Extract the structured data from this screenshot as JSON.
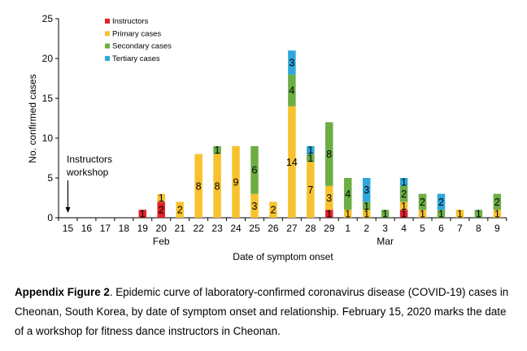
{
  "chart_data": {
    "type": "bar",
    "stacked": true,
    "categories": [
      "15",
      "16",
      "17",
      "18",
      "19",
      "20",
      "21",
      "22",
      "23",
      "24",
      "25",
      "26",
      "27",
      "28",
      "29",
      "1",
      "2",
      "3",
      "4",
      "5",
      "6",
      "7",
      "8",
      "9"
    ],
    "month_labels": [
      {
        "label": "Feb",
        "category": "20"
      },
      {
        "label": "Mar",
        "category": "3"
      }
    ],
    "series": [
      {
        "name": "Instructors",
        "color": "#e0222b",
        "values": [
          0,
          0,
          0,
          0,
          1,
          2,
          0,
          0,
          0,
          0,
          0,
          0,
          0,
          0,
          1,
          0,
          0,
          0,
          1,
          0,
          0,
          0,
          0,
          0
        ]
      },
      {
        "name": "Primary cases",
        "color": "#f7c22e",
        "values": [
          0,
          0,
          0,
          0,
          0,
          1,
          2,
          8,
          8,
          9,
          3,
          2,
          14,
          7,
          3,
          1,
          1,
          0,
          1,
          1,
          0,
          1,
          0,
          1
        ]
      },
      {
        "name": "Secondary cases",
        "color": "#6cae45",
        "values": [
          0,
          0,
          0,
          0,
          0,
          0,
          0,
          0,
          1,
          0,
          6,
          0,
          4,
          1,
          8,
          4,
          1,
          1,
          2,
          2,
          1,
          0,
          1,
          2
        ]
      },
      {
        "name": "Tertiary cases",
        "color": "#2fa7dc",
        "values": [
          0,
          0,
          0,
          0,
          0,
          0,
          0,
          0,
          0,
          0,
          0,
          0,
          3,
          1,
          0,
          0,
          3,
          0,
          1,
          0,
          2,
          0,
          0,
          0
        ]
      }
    ],
    "bar_labels": [
      {
        "category": "19",
        "series": "Instructors",
        "text": "1"
      },
      {
        "category": "20",
        "series": "Instructors",
        "text": "2"
      },
      {
        "category": "20",
        "series": "Primary cases",
        "text": "1"
      },
      {
        "category": "21",
        "series": "Primary cases",
        "text": "2"
      },
      {
        "category": "22",
        "series": "Primary cases",
        "text": "8"
      },
      {
        "category": "23",
        "series": "Primary cases",
        "text": "8"
      },
      {
        "category": "23",
        "series": "Secondary cases",
        "text": "1"
      },
      {
        "category": "24",
        "series": "Primary cases",
        "text": "9"
      },
      {
        "category": "25",
        "series": "Primary cases",
        "text": "3"
      },
      {
        "category": "25",
        "series": "Secondary cases",
        "text": "6"
      },
      {
        "category": "26",
        "series": "Primary cases",
        "text": "2"
      },
      {
        "category": "27",
        "series": "Primary cases",
        "text": "14"
      },
      {
        "category": "27",
        "series": "Secondary cases",
        "text": "4"
      },
      {
        "category": "27",
        "series": "Tertiary cases",
        "text": "3"
      },
      {
        "category": "28",
        "series": "Primary cases",
        "text": "7"
      },
      {
        "category": "28",
        "series": "Secondary cases",
        "text": "1"
      },
      {
        "category": "28",
        "series": "Tertiary cases",
        "text": "1"
      },
      {
        "category": "29",
        "series": "Instructors",
        "text": "1"
      },
      {
        "category": "29",
        "series": "Primary cases",
        "text": "3"
      },
      {
        "category": "29",
        "series": "Secondary cases",
        "text": "8"
      },
      {
        "category": "1",
        "series": "Primary cases",
        "text": "1"
      },
      {
        "category": "1",
        "series": "Secondary cases",
        "text": "4"
      },
      {
        "category": "2",
        "series": "Primary cases",
        "text": "1"
      },
      {
        "category": "2",
        "series": "Secondary cases",
        "text": "1"
      },
      {
        "category": "2",
        "series": "Tertiary cases",
        "text": "3"
      },
      {
        "category": "3",
        "series": "Secondary cases",
        "text": "1"
      },
      {
        "category": "4",
        "series": "Instructors",
        "text": "1"
      },
      {
        "category": "4",
        "series": "Primary cases",
        "text": "1"
      },
      {
        "category": "4",
        "series": "Secondary cases",
        "text": "2"
      },
      {
        "category": "4",
        "series": "Tertiary cases",
        "text": "1"
      },
      {
        "category": "5",
        "series": "Primary cases",
        "text": "1"
      },
      {
        "category": "5",
        "series": "Secondary cases",
        "text": "2"
      },
      {
        "category": "6",
        "series": "Secondary cases",
        "text": "1"
      },
      {
        "category": "6",
        "series": "Tertiary cases",
        "text": "2"
      },
      {
        "category": "7",
        "series": "Primary cases",
        "text": "1"
      },
      {
        "category": "8",
        "series": "Secondary cases",
        "text": "1"
      },
      {
        "category": "9",
        "series": "Primary cases",
        "text": "1"
      },
      {
        "category": "9",
        "series": "Secondary cases",
        "text": "2"
      }
    ],
    "annotations": [
      {
        "text_lines": [
          "Instructors",
          "workshop"
        ],
        "arrow_to_category": "15"
      }
    ],
    "xlabel": "Date of symptom onset",
    "ylabel": "No. confirmed cases",
    "ylim": [
      0,
      25
    ],
    "yticks": [
      0,
      5,
      10,
      15,
      20,
      25
    ],
    "grid": false,
    "legend_position": "top-left"
  },
  "caption": {
    "label": "Appendix Figure 2",
    "text": ". Epidemic curve of laboratory-confirmed coronavirus disease (COVID-19) cases in Cheonan, South Korea, by date of symptom onset and relationship. February 15, 2020 marks the date of a workshop for fitness dance instructors in Cheonan."
  }
}
